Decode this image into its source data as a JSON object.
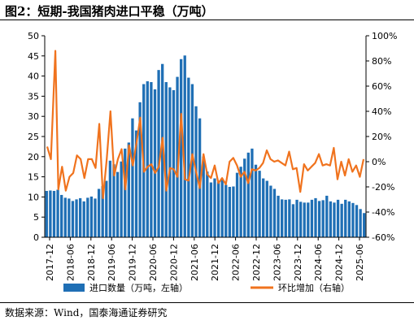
{
  "title": "图2：短期-我国猪肉进口平稳（万吨）",
  "source": "数据来源：Wind，国泰海通证券研究",
  "chart_data": {
    "type": "bar+line",
    "x_ticks": [
      "2017-12",
      "2018-06",
      "2018-12",
      "2019-06",
      "2019-12",
      "2020-06",
      "2020-12",
      "2021-06",
      "2021-12",
      "2022-06",
      "2022-12",
      "2023-06",
      "2023-12",
      "2024-06",
      "2024-12",
      "2025-06"
    ],
    "y_left": {
      "min": 0,
      "max": 50,
      "ticks": [
        0,
        5,
        10,
        15,
        20,
        25,
        30,
        35,
        40,
        45,
        50
      ]
    },
    "y_right": {
      "min": -60,
      "max": 100,
      "ticks": [
        "-60%",
        "-40%",
        "-20%",
        "0%",
        "20%",
        "40%",
        "60%",
        "80%",
        "100%"
      ]
    },
    "colors": {
      "bar": "#1f6fb5",
      "line": "#f0731e"
    },
    "series": [
      {
        "name": "进口数量（万吨，左轴）",
        "type": "bar",
        "axis": "left",
        "values": [
          11.5,
          11.6,
          11.5,
          11.8,
          10.5,
          9.8,
          9.6,
          9.0,
          9.4,
          9.7,
          8.9,
          9.8,
          10.1,
          9.6,
          12.0,
          12.7,
          14.0,
          19.0,
          18.1,
          16.2,
          18.8,
          22.0,
          23.5,
          29.5,
          26.5,
          33.5,
          38.0,
          38.7,
          38.5,
          36.7,
          41.5,
          43.0,
          38.5,
          37.2,
          36.5,
          39.8,
          44.2,
          45.1,
          39.6,
          38.0,
          32.5,
          29.5,
          20.0,
          16.3,
          13.6,
          14.6,
          13.7,
          14.5,
          13.0,
          12.5,
          12.6,
          16.0,
          17.5,
          19.5,
          21.0,
          22.0,
          18.0,
          16.5,
          14.6,
          14.0,
          12.8,
          12.0,
          10.3,
          9.4,
          9.3,
          9.4,
          8.2,
          9.3,
          8.8,
          8.6,
          8.6,
          9.3,
          9.7,
          9.0,
          9.2,
          10.3,
          8.9,
          8.6,
          9.3,
          8.3,
          9.3,
          8.9,
          8.5,
          8.0,
          7.0,
          6.0
        ]
      },
      {
        "name": "环比增加（右轴）",
        "type": "line",
        "axis": "right",
        "values": [
          12,
          2,
          88,
          -22,
          -4,
          -23,
          -12,
          -9,
          5,
          2,
          -13,
          2,
          2,
          -5,
          30,
          -29,
          2,
          40,
          -11,
          2,
          10,
          -22,
          13,
          -3,
          15,
          35,
          -8,
          -4,
          -2,
          -9,
          -4,
          19,
          -23,
          -5,
          -6,
          -12,
          38,
          -14,
          -15,
          6,
          -8,
          -21,
          6,
          -10,
          -13,
          -3,
          -17,
          -13,
          -18,
          0,
          3,
          -3,
          -12,
          -8,
          -17,
          -6,
          -7,
          -5,
          -1,
          9,
          2,
          0,
          1,
          -1,
          -3,
          8,
          -6,
          -5,
          -24,
          -2,
          -7,
          -4,
          -1,
          6,
          -3,
          -2,
          -3,
          11,
          -14,
          0,
          -11,
          2,
          -8,
          -3,
          -12,
          2
        ]
      }
    ],
    "line_points": [
      [
        0,
        12
      ],
      [
        2,
        2
      ],
      [
        4.4,
        88
      ],
      [
        6,
        -22
      ],
      [
        8,
        -4
      ],
      [
        10,
        -23
      ],
      [
        12,
        -12
      ],
      [
        14,
        -9
      ],
      [
        16,
        5
      ],
      [
        18,
        2
      ],
      [
        20,
        -13
      ],
      [
        22,
        2
      ],
      [
        24,
        2
      ],
      [
        26,
        -5
      ],
      [
        28,
        30
      ],
      [
        30,
        -29
      ],
      [
        32,
        2
      ],
      [
        34,
        40
      ],
      [
        36,
        -11
      ],
      [
        38,
        2
      ],
      [
        40,
        10
      ],
      [
        42,
        -22
      ],
      [
        44,
        13
      ],
      [
        46,
        -3
      ],
      [
        48,
        15
      ],
      [
        50,
        35
      ],
      [
        52,
        -8
      ],
      [
        54,
        -4
      ],
      [
        56,
        -2
      ],
      [
        58,
        -9
      ],
      [
        60,
        -4
      ],
      [
        62,
        19
      ],
      [
        64,
        -23
      ],
      [
        66,
        -5
      ],
      [
        68,
        -6
      ],
      [
        70,
        -12
      ],
      [
        72,
        38
      ],
      [
        74,
        -14
      ],
      [
        76,
        -15
      ],
      [
        78,
        6
      ],
      [
        80,
        -8
      ],
      [
        82,
        -21
      ],
      [
        84,
        6
      ],
      [
        86,
        -10
      ],
      [
        88,
        -13
      ],
      [
        90,
        -3
      ],
      [
        92,
        -17
      ],
      [
        94,
        -13
      ],
      [
        96,
        -18
      ],
      [
        98,
        0
      ],
      [
        100,
        3
      ],
      [
        102,
        -3
      ],
      [
        104,
        -12
      ],
      [
        106,
        -8
      ],
      [
        108,
        -17
      ],
      [
        110,
        -6
      ],
      [
        112,
        -7
      ],
      [
        114,
        -5
      ],
      [
        116,
        -1
      ],
      [
        118,
        9
      ],
      [
        120,
        2
      ],
      [
        122,
        0
      ],
      [
        124,
        1
      ],
      [
        126,
        -1
      ],
      [
        128,
        -3
      ],
      [
        130,
        8
      ],
      [
        132,
        -6
      ],
      [
        134,
        -5
      ],
      [
        136,
        -24
      ],
      [
        138,
        -2
      ],
      [
        140,
        -7
      ],
      [
        142,
        -4
      ],
      [
        144,
        -1
      ],
      [
        146,
        6
      ],
      [
        148,
        -3
      ],
      [
        150,
        -2
      ],
      [
        152,
        -3
      ],
      [
        154,
        11
      ],
      [
        156,
        -14
      ],
      [
        158,
        0
      ],
      [
        160,
        -11
      ],
      [
        162,
        2
      ],
      [
        164,
        -8
      ],
      [
        166,
        -3
      ],
      [
        168,
        -12
      ],
      [
        170,
        2
      ]
    ],
    "legend": [
      "进口数量（万吨，左轴）",
      "环比增加（右轴）"
    ],
    "legend_position": "bottom"
  }
}
